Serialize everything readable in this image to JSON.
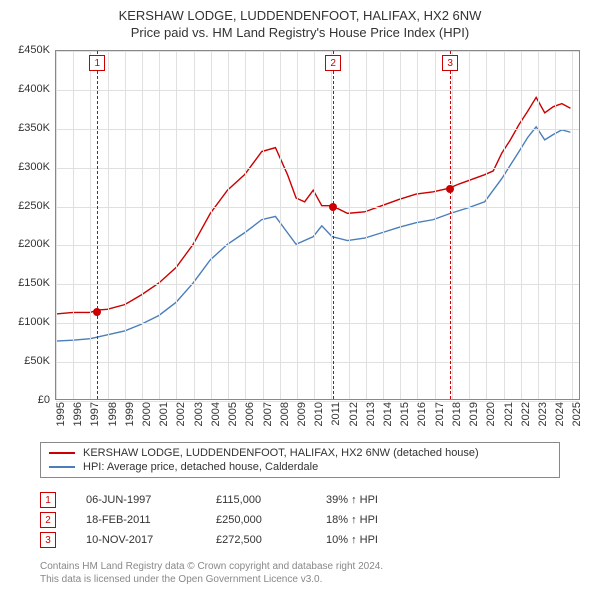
{
  "title_line1": "KERSHAW LODGE, LUDDENDENFOOT, HALIFAX, HX2 6NW",
  "title_line2": "Price paid vs. HM Land Registry's House Price Index (HPI)",
  "chart": {
    "type": "line",
    "xlim": [
      1995,
      2025.5
    ],
    "ylim": [
      0,
      450000
    ],
    "ytick_step": 50000,
    "y_ticks": [
      "£0",
      "£50K",
      "£100K",
      "£150K",
      "£200K",
      "£250K",
      "£300K",
      "£350K",
      "£400K",
      "£450K"
    ],
    "x_ticks": [
      1995,
      1996,
      1997,
      1998,
      1999,
      2000,
      2001,
      2002,
      2003,
      2004,
      2005,
      2006,
      2007,
      2008,
      2009,
      2010,
      2011,
      2012,
      2013,
      2014,
      2015,
      2016,
      2017,
      2018,
      2019,
      2020,
      2021,
      2022,
      2023,
      2024,
      2025
    ],
    "grid_color": "#e0e0e0",
    "background_color": "#ffffff",
    "series": [
      {
        "name": "KERSHAW LODGE, LUDDENDENFOOT, HALIFAX, HX2 6NW (detached house)",
        "color": "#cc0000",
        "line_width": 1.4,
        "points": [
          [
            1995.0,
            110000
          ],
          [
            1996.0,
            112000
          ],
          [
            1997.0,
            112000
          ],
          [
            1997.4,
            115000
          ],
          [
            1998.0,
            116000
          ],
          [
            1999.0,
            122000
          ],
          [
            2000.0,
            135000
          ],
          [
            2001.0,
            150000
          ],
          [
            2002.0,
            170000
          ],
          [
            2003.0,
            200000
          ],
          [
            2004.0,
            240000
          ],
          [
            2005.0,
            270000
          ],
          [
            2006.0,
            290000
          ],
          [
            2007.0,
            320000
          ],
          [
            2007.8,
            325000
          ],
          [
            2008.5,
            290000
          ],
          [
            2009.0,
            260000
          ],
          [
            2009.5,
            255000
          ],
          [
            2010.0,
            270000
          ],
          [
            2010.5,
            250000
          ],
          [
            2011.1,
            250000
          ],
          [
            2012.0,
            240000
          ],
          [
            2013.0,
            242000
          ],
          [
            2014.0,
            250000
          ],
          [
            2015.0,
            258000
          ],
          [
            2016.0,
            265000
          ],
          [
            2017.0,
            268000
          ],
          [
            2017.9,
            272500
          ],
          [
            2018.5,
            278000
          ],
          [
            2019.0,
            282000
          ],
          [
            2020.0,
            290000
          ],
          [
            2020.5,
            295000
          ],
          [
            2021.0,
            318000
          ],
          [
            2021.5,
            335000
          ],
          [
            2022.0,
            355000
          ],
          [
            2022.5,
            372000
          ],
          [
            2023.0,
            390000
          ],
          [
            2023.5,
            370000
          ],
          [
            2024.0,
            378000
          ],
          [
            2024.5,
            382000
          ],
          [
            2025.0,
            376000
          ]
        ]
      },
      {
        "name": "HPI: Average price, detached house, Calderdale",
        "color": "#4a7ebb",
        "line_width": 1.4,
        "points": [
          [
            1995.0,
            75000
          ],
          [
            1996.0,
            76000
          ],
          [
            1997.0,
            78000
          ],
          [
            1998.0,
            83000
          ],
          [
            1999.0,
            88000
          ],
          [
            2000.0,
            97000
          ],
          [
            2001.0,
            108000
          ],
          [
            2002.0,
            125000
          ],
          [
            2003.0,
            150000
          ],
          [
            2004.0,
            180000
          ],
          [
            2005.0,
            200000
          ],
          [
            2006.0,
            215000
          ],
          [
            2007.0,
            232000
          ],
          [
            2007.8,
            236000
          ],
          [
            2008.5,
            215000
          ],
          [
            2009.0,
            200000
          ],
          [
            2010.0,
            210000
          ],
          [
            2010.5,
            224000
          ],
          [
            2011.1,
            210000
          ],
          [
            2012.0,
            205000
          ],
          [
            2013.0,
            208000
          ],
          [
            2014.0,
            215000
          ],
          [
            2015.0,
            222000
          ],
          [
            2016.0,
            228000
          ],
          [
            2017.0,
            232000
          ],
          [
            2018.0,
            240000
          ],
          [
            2019.0,
            247000
          ],
          [
            2020.0,
            255000
          ],
          [
            2021.0,
            285000
          ],
          [
            2022.0,
            320000
          ],
          [
            2022.5,
            338000
          ],
          [
            2023.0,
            352000
          ],
          [
            2023.5,
            335000
          ],
          [
            2024.0,
            342000
          ],
          [
            2024.5,
            348000
          ],
          [
            2025.0,
            345000
          ]
        ]
      }
    ],
    "events": [
      {
        "n": "1",
        "x": 1997.4,
        "marker_y": 115000
      },
      {
        "n": "2",
        "x": 2011.1,
        "marker_y": 250000
      },
      {
        "n": "3",
        "x": 2017.9,
        "marker_y": 272500
      }
    ]
  },
  "legend": [
    {
      "color": "#cc0000",
      "label": "KERSHAW LODGE, LUDDENDENFOOT, HALIFAX, HX2 6NW (detached house)"
    },
    {
      "color": "#4a7ebb",
      "label": "HPI: Average price, detached house, Calderdale"
    }
  ],
  "transactions": [
    {
      "n": "1",
      "date": "06-JUN-1997",
      "price": "£115,000",
      "pct": "39% ↑ HPI"
    },
    {
      "n": "2",
      "date": "18-FEB-2011",
      "price": "£250,000",
      "pct": "18% ↑ HPI"
    },
    {
      "n": "3",
      "date": "10-NOV-2017",
      "price": "£272,500",
      "pct": "10% ↑ HPI"
    }
  ],
  "footer_line1": "Contains HM Land Registry data © Crown copyright and database right 2024.",
  "footer_line2": "This data is licensed under the Open Government Licence v3.0."
}
